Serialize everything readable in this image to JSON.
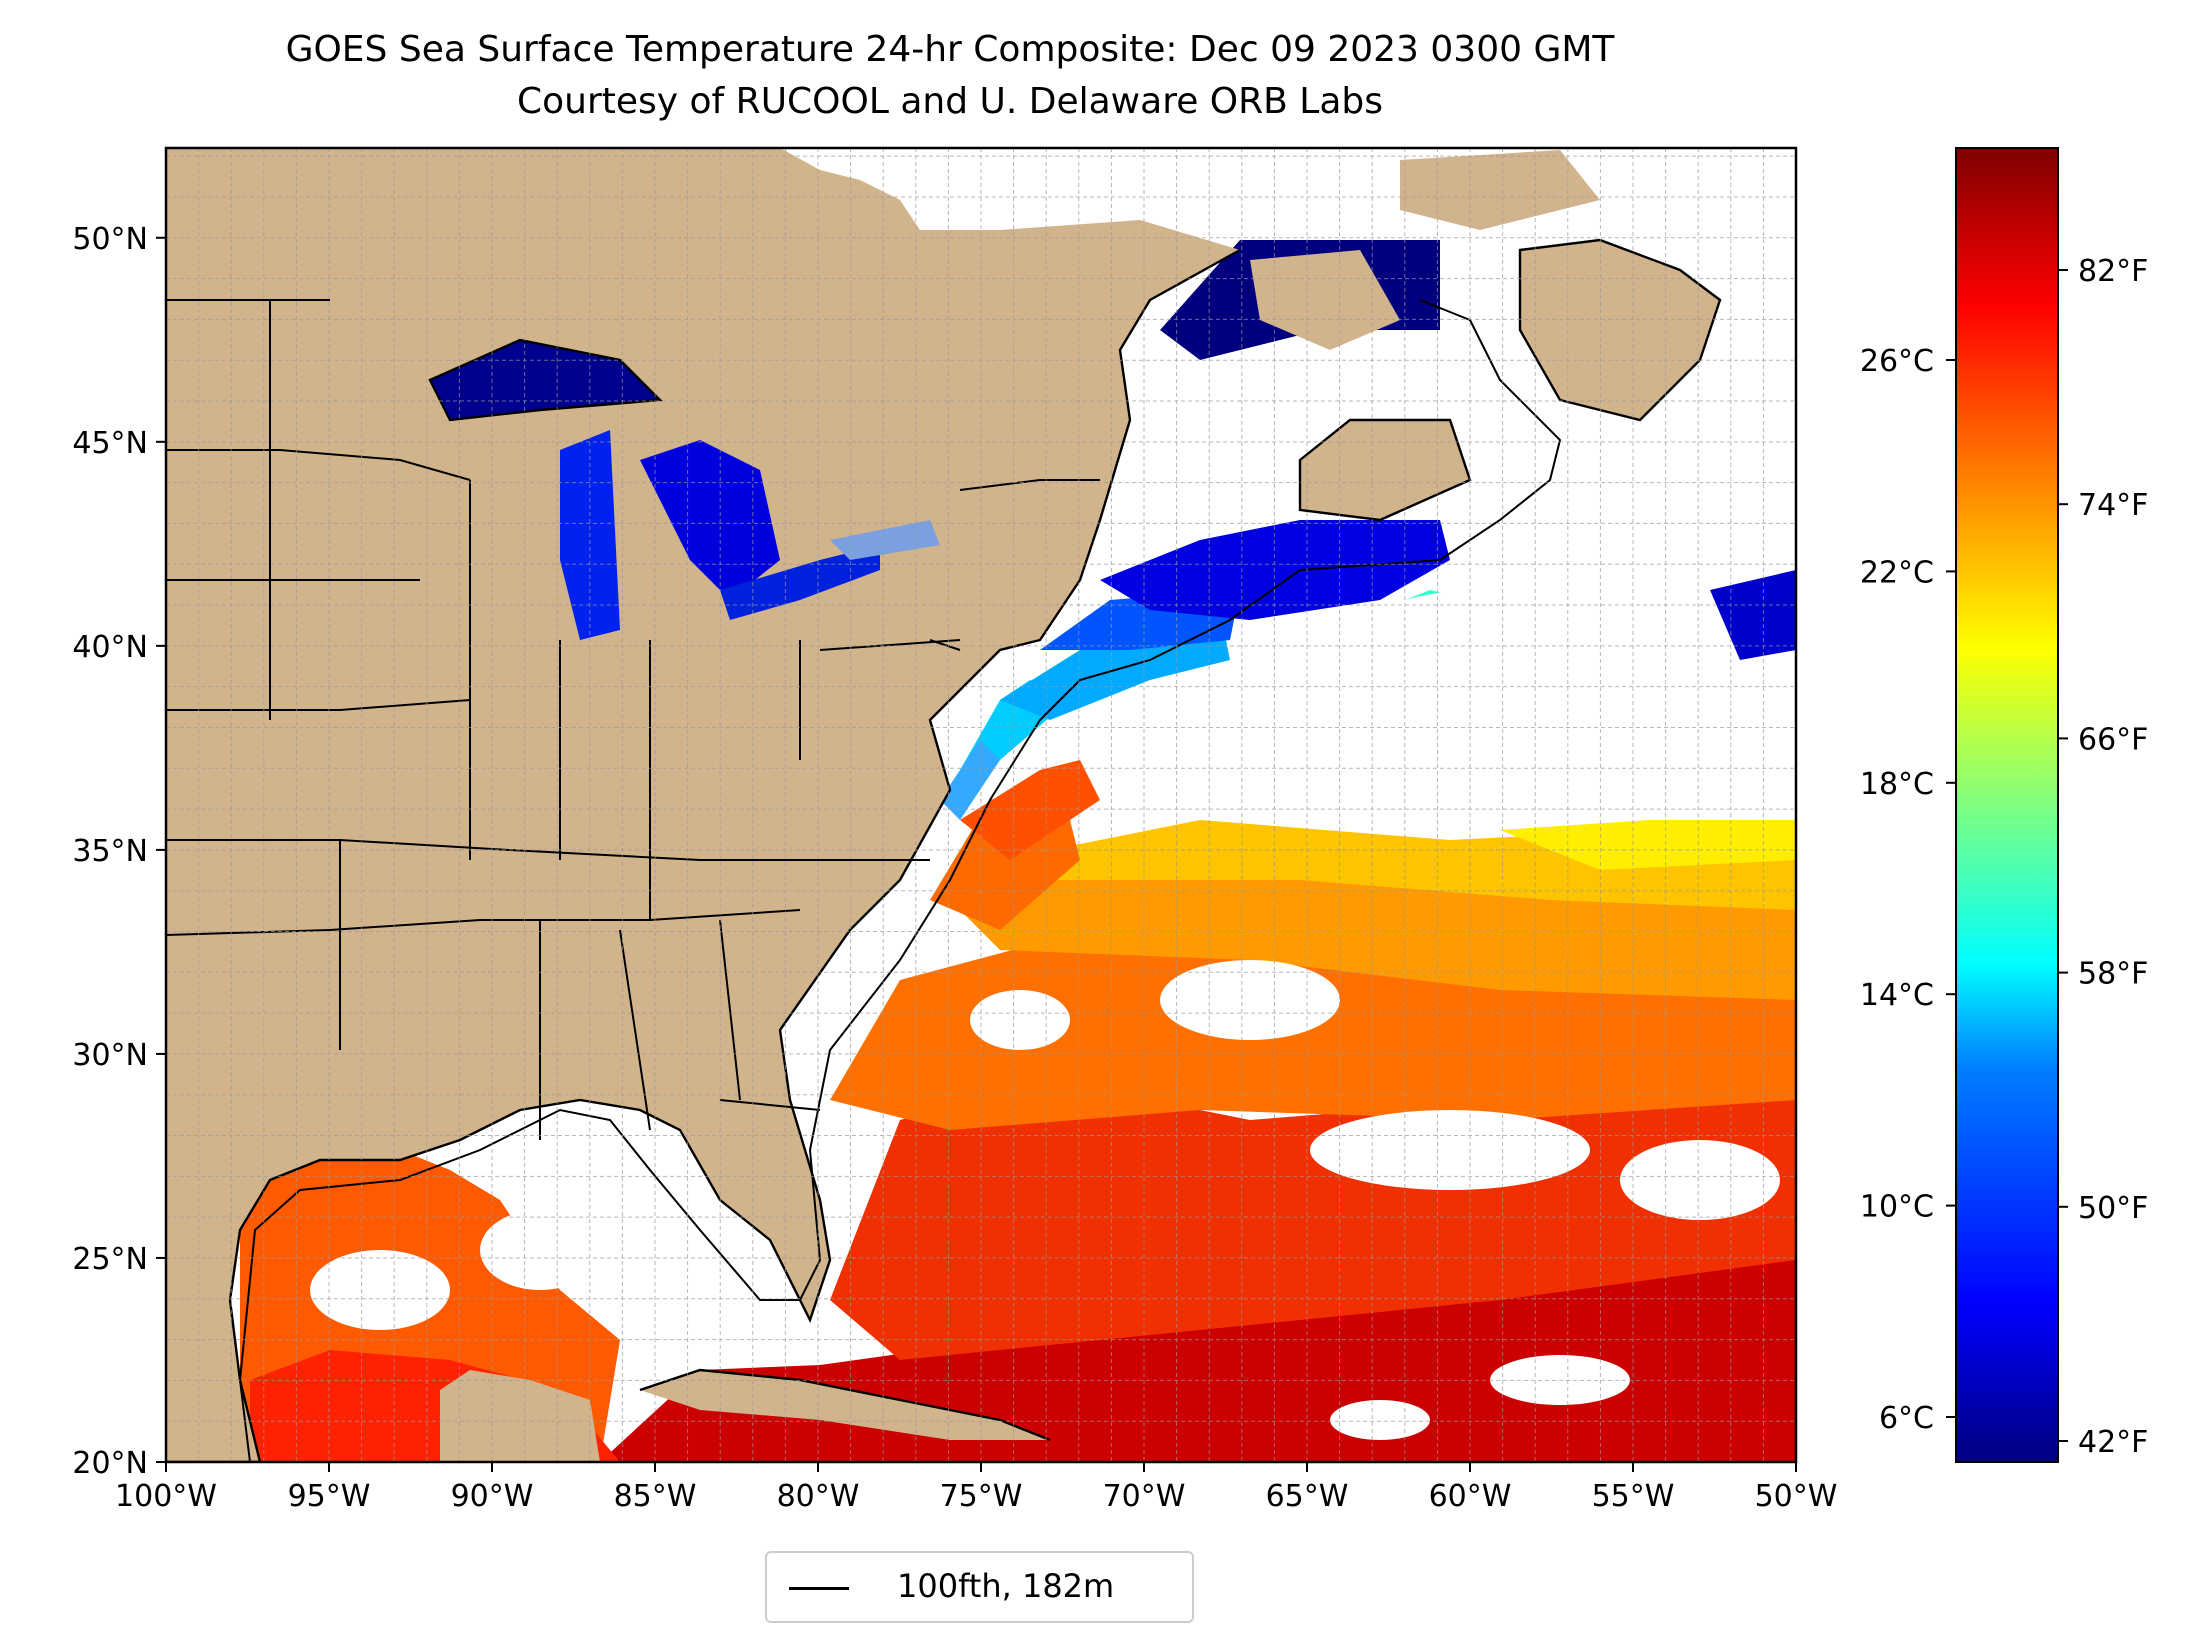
{
  "title": "GOES Sea Surface Temperature 24-hr Composite: Dec 09 2023 0300 GMT",
  "subtitle": "Courtesy of RUCOOL and U. Delaware ORB Labs",
  "map": {
    "lon_range": [
      -100,
      -50
    ],
    "lat_range": [
      20,
      52.2
    ],
    "x_ticks": [
      "100°W",
      "95°W",
      "90°W",
      "85°W",
      "80°W",
      "75°W",
      "70°W",
      "65°W",
      "60°W",
      "55°W",
      "50°W"
    ],
    "y_ticks": [
      "20°N",
      "25°N",
      "30°N",
      "35°N",
      "40°N",
      "45°N",
      "50°N"
    ],
    "grid": true,
    "land_color": "#d2b48c"
  },
  "legend": {
    "label": "100fth, 182m",
    "placement": "bottom-center"
  },
  "colorbar": {
    "colormap": "jet",
    "celsius_ticks": [
      "26°C",
      "22°C",
      "18°C",
      "14°C",
      "10°C",
      "6°C"
    ],
    "fahrenheit_ticks": [
      "82°F",
      "74°F",
      "66°F",
      "58°F",
      "50°F",
      "42°F"
    ],
    "colors": [
      "#00007f",
      "#0000ff",
      "#007fff",
      "#00ffff",
      "#7fff7f",
      "#ffff00",
      "#ff7f00",
      "#ff0000",
      "#7f0000"
    ]
  }
}
